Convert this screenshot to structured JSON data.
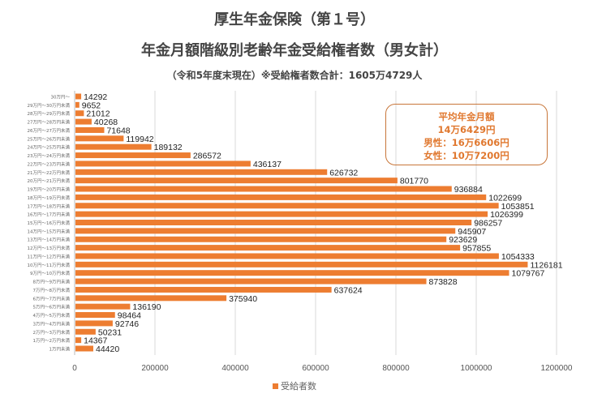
{
  "chart_data": {
    "type": "bar",
    "orientation": "horizontal",
    "title": "厚生年金保険（第１号）",
    "subtitle": "年金月額階級別老齢年金受給権者数（男女計）",
    "subtitle2": "（令和5年度末現在）※受給権者数合計：1605万4729人",
    "categories": [
      "1万円未満",
      "1万円～2万円未満",
      "2万円～3万円未満",
      "3万円～4万円未満",
      "4万円～5万円未満",
      "5万円～6万円未満",
      "6万円～7万円未満",
      "7万円～8万円未満",
      "8万円～9万円未満",
      "9万円～10万円未満",
      "10万円～11万円未満",
      "11万円～12万円未満",
      "12万円～13万円未満",
      "13万円～14万円未満",
      "14万円～15万円未満",
      "15万円～16万円未満",
      "16万円～17万円未満",
      "17万円～18万円未満",
      "18万円～19万円未満",
      "19万円～20万円未満",
      "20万円～21万円未満",
      "21万円～22万円未満",
      "22万円～23万円未満",
      "23万円～24万円未満",
      "24万円～25万円未満",
      "25万円～26万円未満",
      "26万円～27万円未満",
      "27万円～28万円未満",
      "28万円～29万円未満",
      "29万円～30万円未満",
      "30万円～"
    ],
    "series": [
      {
        "name": "受給者数",
        "color": "#ed7d31",
        "values": [
          44420,
          14367,
          50231,
          92746,
          98464,
          136190,
          375940,
          637624,
          873828,
          1079767,
          1126181,
          1054333,
          957855,
          923629,
          945907,
          986257,
          1026399,
          1053851,
          1022699,
          936884,
          801770,
          626732,
          436137,
          286572,
          189132,
          119942,
          71648,
          40268,
          21012,
          9652,
          14292
        ]
      }
    ],
    "xlim": [
      0,
      1200000
    ],
    "xticks": [
      "0",
      "200000",
      "400000",
      "600000",
      "800000",
      "1000000",
      "1200000"
    ],
    "grid": true,
    "legend": "bottom",
    "annotation": {
      "line1": "平均年金月額",
      "line2": "14万6429円",
      "line3": "男性：16万6606円",
      "line4": "女性：10万7200円"
    }
  }
}
